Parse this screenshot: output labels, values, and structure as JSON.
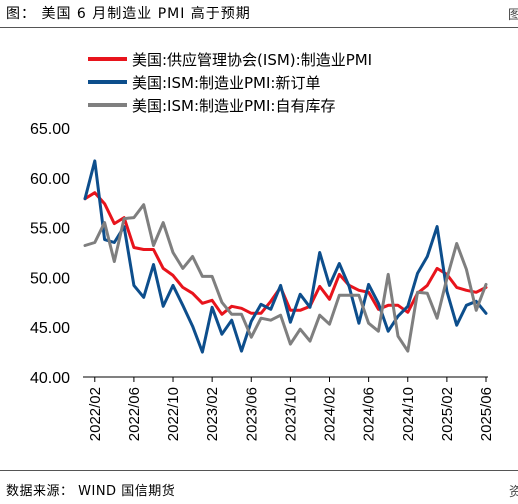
{
  "header": {
    "title": "图： 美国 6 月制造业 PMI 高于预期",
    "edge_top": "图",
    "edge_bottom": "资"
  },
  "footer": {
    "source": "数据来源： WIND  国信期货"
  },
  "chart_data": {
    "type": "line",
    "title": "",
    "xlabel": "",
    "ylabel": "",
    "ylim": [
      40,
      65
    ],
    "yticks": [
      "40.00",
      "45.00",
      "50.00",
      "55.00",
      "60.00",
      "65.00"
    ],
    "grid": false,
    "legend_position": "top",
    "x_start": "2022/01",
    "x_end": "2025/06",
    "xticks": [
      "2022/02",
      "2022/06",
      "2022/10",
      "2023/02",
      "2023/06",
      "2023/10",
      "2024/02",
      "2024/06",
      "2024/10",
      "2025/02",
      "2025/06"
    ],
    "xtick_months": [
      1,
      5,
      9,
      13,
      17,
      21,
      25,
      29,
      33,
      37,
      41
    ],
    "series": [
      {
        "name": "美国:供应管理协会(ISM):制造业PMI",
        "color": "#e8141c",
        "values": [
          57.9,
          58.5,
          57.4,
          55.4,
          56.0,
          53.0,
          52.8,
          52.8,
          50.9,
          50.2,
          49.0,
          48.4,
          47.4,
          47.7,
          46.3,
          47.1,
          46.9,
          46.4,
          46.4,
          47.6,
          49.0,
          46.7,
          46.7,
          47.1,
          49.1,
          47.8,
          50.3,
          49.2,
          48.7,
          48.5,
          46.8,
          47.2,
          47.2,
          46.5,
          48.4,
          49.2,
          50.9,
          50.3,
          49.0,
          48.7,
          48.5,
          49.0
        ]
      },
      {
        "name": "美国:ISM:制造业PMI:新订单",
        "color": "#0d4e8c",
        "values": [
          57.9,
          61.7,
          53.8,
          53.5,
          55.1,
          49.2,
          48.0,
          51.3,
          47.1,
          49.2,
          47.2,
          45.1,
          42.5,
          47.0,
          44.3,
          45.7,
          42.6,
          45.6,
          47.3,
          46.8,
          49.2,
          45.5,
          48.3,
          47.0,
          52.5,
          49.2,
          51.4,
          49.1,
          45.4,
          49.3,
          47.4,
          44.6,
          46.1,
          47.1,
          50.4,
          52.1,
          55.1,
          48.6,
          45.2,
          47.2,
          47.6,
          46.4
        ]
      },
      {
        "name": "美国:ISM:制造业PMI:自有库存",
        "color": "#7f7f7f",
        "values": [
          53.2,
          53.5,
          55.5,
          51.6,
          55.9,
          56.0,
          57.3,
          53.2,
          55.5,
          52.5,
          50.9,
          52.1,
          50.1,
          50.1,
          47.5,
          46.3,
          46.3,
          44.0,
          45.9,
          45.7,
          46.2,
          43.3,
          44.8,
          43.6,
          46.2,
          45.3,
          48.2,
          48.2,
          48.2,
          45.4,
          44.6,
          50.3,
          44.1,
          42.6,
          48.5,
          48.4,
          45.9,
          49.9,
          53.4,
          50.8,
          46.7,
          49.3
        ]
      }
    ]
  }
}
